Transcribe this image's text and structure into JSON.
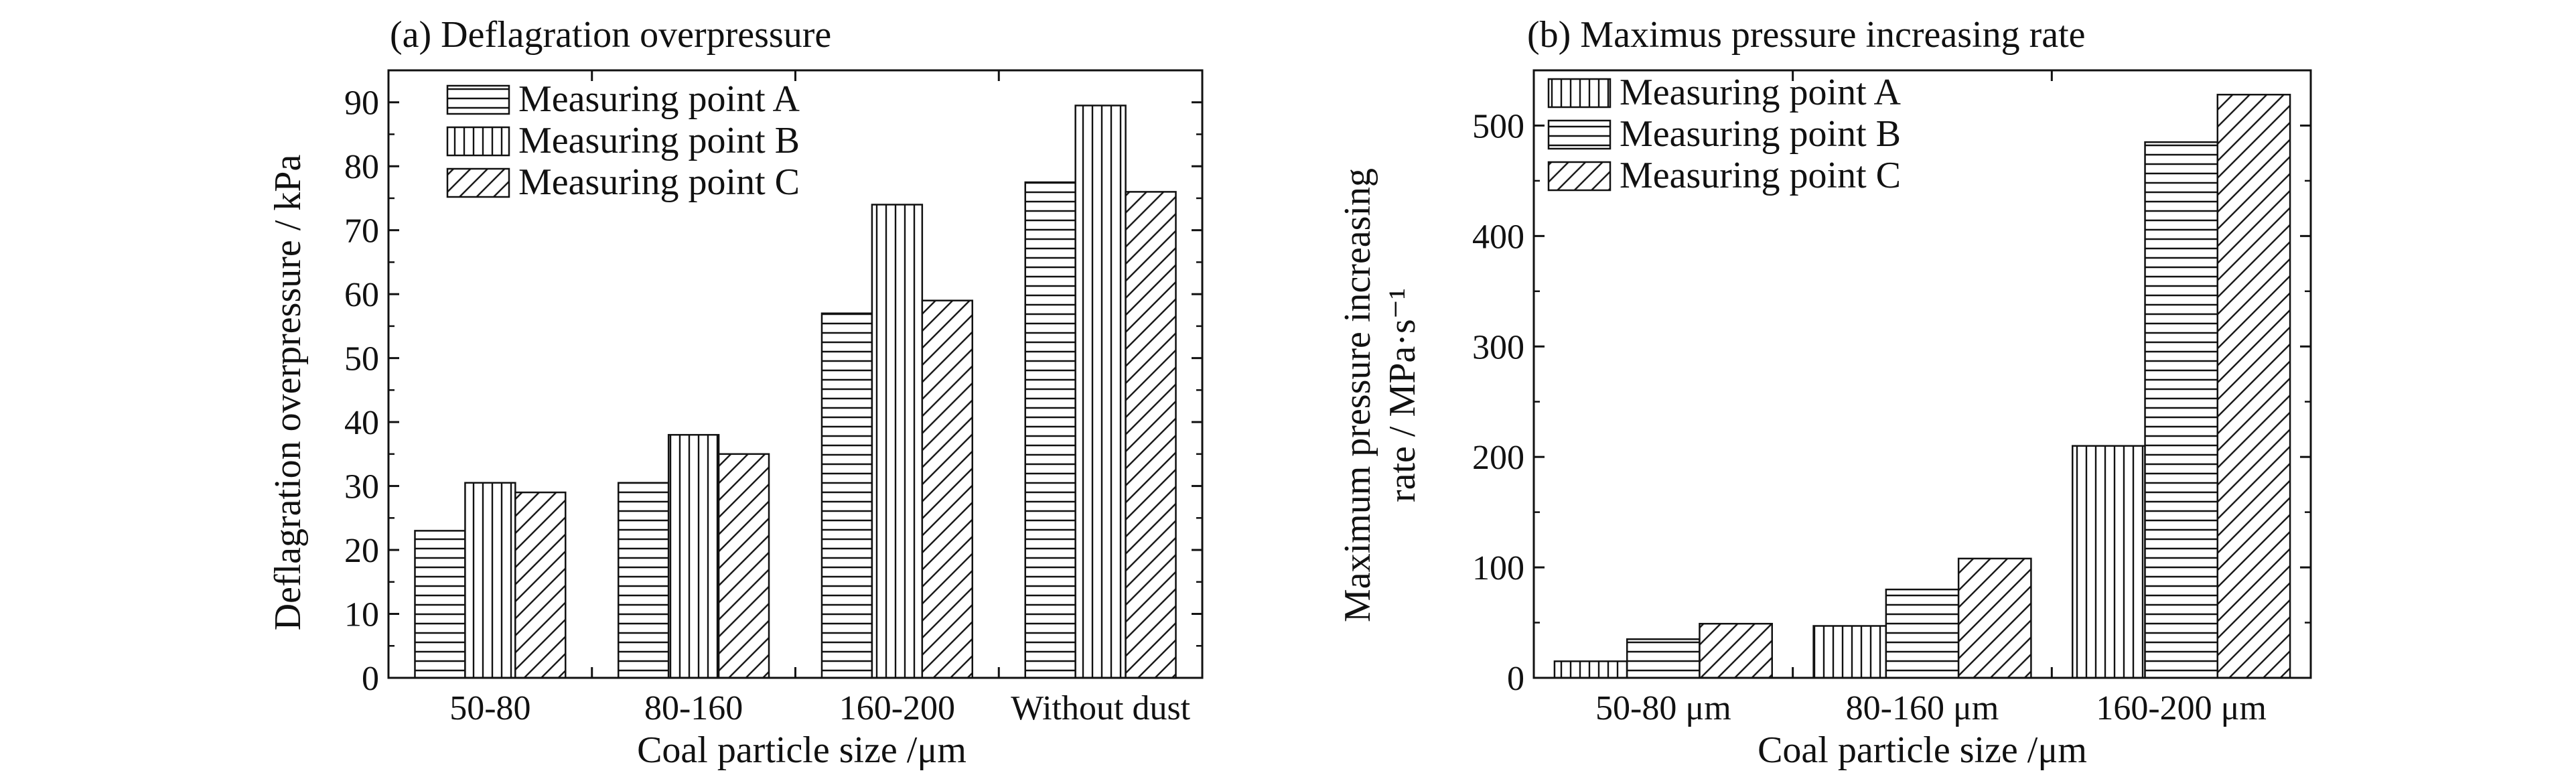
{
  "figure": {
    "background": "#ffffff",
    "ink": "#111111"
  },
  "chart_data": [
    {
      "type": "bar",
      "title": "(a) Deflagration overpressure",
      "xlabel": "Coal particle size /μm",
      "ylabel": "Deflagration overpressure / kPa",
      "categories": [
        "50-80",
        "80-160",
        "160-200",
        "Without dust"
      ],
      "ylim": [
        0,
        95
      ],
      "yticks": [
        0,
        10,
        20,
        30,
        40,
        50,
        60,
        70,
        80,
        90
      ],
      "grid": false,
      "legend_position": "top-left",
      "series": [
        {
          "name": "Measuring point A",
          "pattern": "horizontal",
          "values": [
            23,
            30.5,
            57,
            77.5
          ]
        },
        {
          "name": "Measuring point B",
          "pattern": "vertical",
          "values": [
            30.5,
            38,
            74,
            89.5
          ]
        },
        {
          "name": "Measuring point C",
          "pattern": "diagonal",
          "values": [
            29,
            35,
            59,
            76
          ]
        }
      ]
    },
    {
      "type": "bar",
      "title": "(b) Maximus pressure increasing rate",
      "xlabel": "Coal particle size /μm",
      "ylabel_line1": "Maximum pressure increasing",
      "ylabel_line2": "rate / MPa·s⁻¹",
      "categories": [
        "50-80 μm",
        "80-160 μm",
        "160-200 μm"
      ],
      "ylim": [
        0,
        550
      ],
      "yticks": [
        0,
        100,
        200,
        300,
        400,
        500
      ],
      "grid": false,
      "legend_position": "top-left",
      "series": [
        {
          "name": "Measuring point A",
          "pattern": "vertical",
          "values": [
            15,
            47,
            210
          ]
        },
        {
          "name": "Measuring point B",
          "pattern": "horizontal",
          "values": [
            35,
            80,
            485
          ]
        },
        {
          "name": "Measuring point C",
          "pattern": "diagonal",
          "values": [
            49,
            108,
            528
          ]
        }
      ]
    }
  ]
}
